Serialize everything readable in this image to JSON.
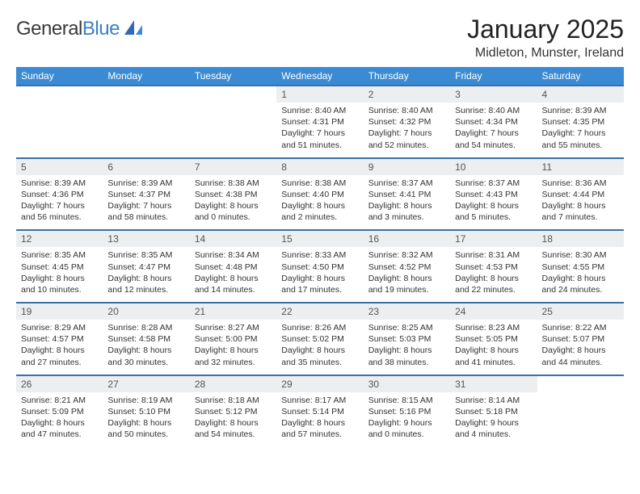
{
  "brand": {
    "word1": "General",
    "word2": "Blue"
  },
  "title": "January 2025",
  "location": "Midleton, Munster, Ireland",
  "colors": {
    "header_bg": "#3b8bd4",
    "header_fg": "#ffffff",
    "row_border": "#3b6fa8",
    "daynum_bg": "#eceeef",
    "brand_blue": "#3b7fc4"
  },
  "weekdays": [
    "Sunday",
    "Monday",
    "Tuesday",
    "Wednesday",
    "Thursday",
    "Friday",
    "Saturday"
  ],
  "weeks": [
    [
      {
        "n": "",
        "sunrise": "",
        "sunset": "",
        "daylight": ""
      },
      {
        "n": "",
        "sunrise": "",
        "sunset": "",
        "daylight": ""
      },
      {
        "n": "",
        "sunrise": "",
        "sunset": "",
        "daylight": ""
      },
      {
        "n": "1",
        "sunrise": "Sunrise: 8:40 AM",
        "sunset": "Sunset: 4:31 PM",
        "daylight": "Daylight: 7 hours and 51 minutes."
      },
      {
        "n": "2",
        "sunrise": "Sunrise: 8:40 AM",
        "sunset": "Sunset: 4:32 PM",
        "daylight": "Daylight: 7 hours and 52 minutes."
      },
      {
        "n": "3",
        "sunrise": "Sunrise: 8:40 AM",
        "sunset": "Sunset: 4:34 PM",
        "daylight": "Daylight: 7 hours and 54 minutes."
      },
      {
        "n": "4",
        "sunrise": "Sunrise: 8:39 AM",
        "sunset": "Sunset: 4:35 PM",
        "daylight": "Daylight: 7 hours and 55 minutes."
      }
    ],
    [
      {
        "n": "5",
        "sunrise": "Sunrise: 8:39 AM",
        "sunset": "Sunset: 4:36 PM",
        "daylight": "Daylight: 7 hours and 56 minutes."
      },
      {
        "n": "6",
        "sunrise": "Sunrise: 8:39 AM",
        "sunset": "Sunset: 4:37 PM",
        "daylight": "Daylight: 7 hours and 58 minutes."
      },
      {
        "n": "7",
        "sunrise": "Sunrise: 8:38 AM",
        "sunset": "Sunset: 4:38 PM",
        "daylight": "Daylight: 8 hours and 0 minutes."
      },
      {
        "n": "8",
        "sunrise": "Sunrise: 8:38 AM",
        "sunset": "Sunset: 4:40 PM",
        "daylight": "Daylight: 8 hours and 2 minutes."
      },
      {
        "n": "9",
        "sunrise": "Sunrise: 8:37 AM",
        "sunset": "Sunset: 4:41 PM",
        "daylight": "Daylight: 8 hours and 3 minutes."
      },
      {
        "n": "10",
        "sunrise": "Sunrise: 8:37 AM",
        "sunset": "Sunset: 4:43 PM",
        "daylight": "Daylight: 8 hours and 5 minutes."
      },
      {
        "n": "11",
        "sunrise": "Sunrise: 8:36 AM",
        "sunset": "Sunset: 4:44 PM",
        "daylight": "Daylight: 8 hours and 7 minutes."
      }
    ],
    [
      {
        "n": "12",
        "sunrise": "Sunrise: 8:35 AM",
        "sunset": "Sunset: 4:45 PM",
        "daylight": "Daylight: 8 hours and 10 minutes."
      },
      {
        "n": "13",
        "sunrise": "Sunrise: 8:35 AM",
        "sunset": "Sunset: 4:47 PM",
        "daylight": "Daylight: 8 hours and 12 minutes."
      },
      {
        "n": "14",
        "sunrise": "Sunrise: 8:34 AM",
        "sunset": "Sunset: 4:48 PM",
        "daylight": "Daylight: 8 hours and 14 minutes."
      },
      {
        "n": "15",
        "sunrise": "Sunrise: 8:33 AM",
        "sunset": "Sunset: 4:50 PM",
        "daylight": "Daylight: 8 hours and 17 minutes."
      },
      {
        "n": "16",
        "sunrise": "Sunrise: 8:32 AM",
        "sunset": "Sunset: 4:52 PM",
        "daylight": "Daylight: 8 hours and 19 minutes."
      },
      {
        "n": "17",
        "sunrise": "Sunrise: 8:31 AM",
        "sunset": "Sunset: 4:53 PM",
        "daylight": "Daylight: 8 hours and 22 minutes."
      },
      {
        "n": "18",
        "sunrise": "Sunrise: 8:30 AM",
        "sunset": "Sunset: 4:55 PM",
        "daylight": "Daylight: 8 hours and 24 minutes."
      }
    ],
    [
      {
        "n": "19",
        "sunrise": "Sunrise: 8:29 AM",
        "sunset": "Sunset: 4:57 PM",
        "daylight": "Daylight: 8 hours and 27 minutes."
      },
      {
        "n": "20",
        "sunrise": "Sunrise: 8:28 AM",
        "sunset": "Sunset: 4:58 PM",
        "daylight": "Daylight: 8 hours and 30 minutes."
      },
      {
        "n": "21",
        "sunrise": "Sunrise: 8:27 AM",
        "sunset": "Sunset: 5:00 PM",
        "daylight": "Daylight: 8 hours and 32 minutes."
      },
      {
        "n": "22",
        "sunrise": "Sunrise: 8:26 AM",
        "sunset": "Sunset: 5:02 PM",
        "daylight": "Daylight: 8 hours and 35 minutes."
      },
      {
        "n": "23",
        "sunrise": "Sunrise: 8:25 AM",
        "sunset": "Sunset: 5:03 PM",
        "daylight": "Daylight: 8 hours and 38 minutes."
      },
      {
        "n": "24",
        "sunrise": "Sunrise: 8:23 AM",
        "sunset": "Sunset: 5:05 PM",
        "daylight": "Daylight: 8 hours and 41 minutes."
      },
      {
        "n": "25",
        "sunrise": "Sunrise: 8:22 AM",
        "sunset": "Sunset: 5:07 PM",
        "daylight": "Daylight: 8 hours and 44 minutes."
      }
    ],
    [
      {
        "n": "26",
        "sunrise": "Sunrise: 8:21 AM",
        "sunset": "Sunset: 5:09 PM",
        "daylight": "Daylight: 8 hours and 47 minutes."
      },
      {
        "n": "27",
        "sunrise": "Sunrise: 8:19 AM",
        "sunset": "Sunset: 5:10 PM",
        "daylight": "Daylight: 8 hours and 50 minutes."
      },
      {
        "n": "28",
        "sunrise": "Sunrise: 8:18 AM",
        "sunset": "Sunset: 5:12 PM",
        "daylight": "Daylight: 8 hours and 54 minutes."
      },
      {
        "n": "29",
        "sunrise": "Sunrise: 8:17 AM",
        "sunset": "Sunset: 5:14 PM",
        "daylight": "Daylight: 8 hours and 57 minutes."
      },
      {
        "n": "30",
        "sunrise": "Sunrise: 8:15 AM",
        "sunset": "Sunset: 5:16 PM",
        "daylight": "Daylight: 9 hours and 0 minutes."
      },
      {
        "n": "31",
        "sunrise": "Sunrise: 8:14 AM",
        "sunset": "Sunset: 5:18 PM",
        "daylight": "Daylight: 9 hours and 4 minutes."
      },
      {
        "n": "",
        "sunrise": "",
        "sunset": "",
        "daylight": ""
      }
    ]
  ]
}
